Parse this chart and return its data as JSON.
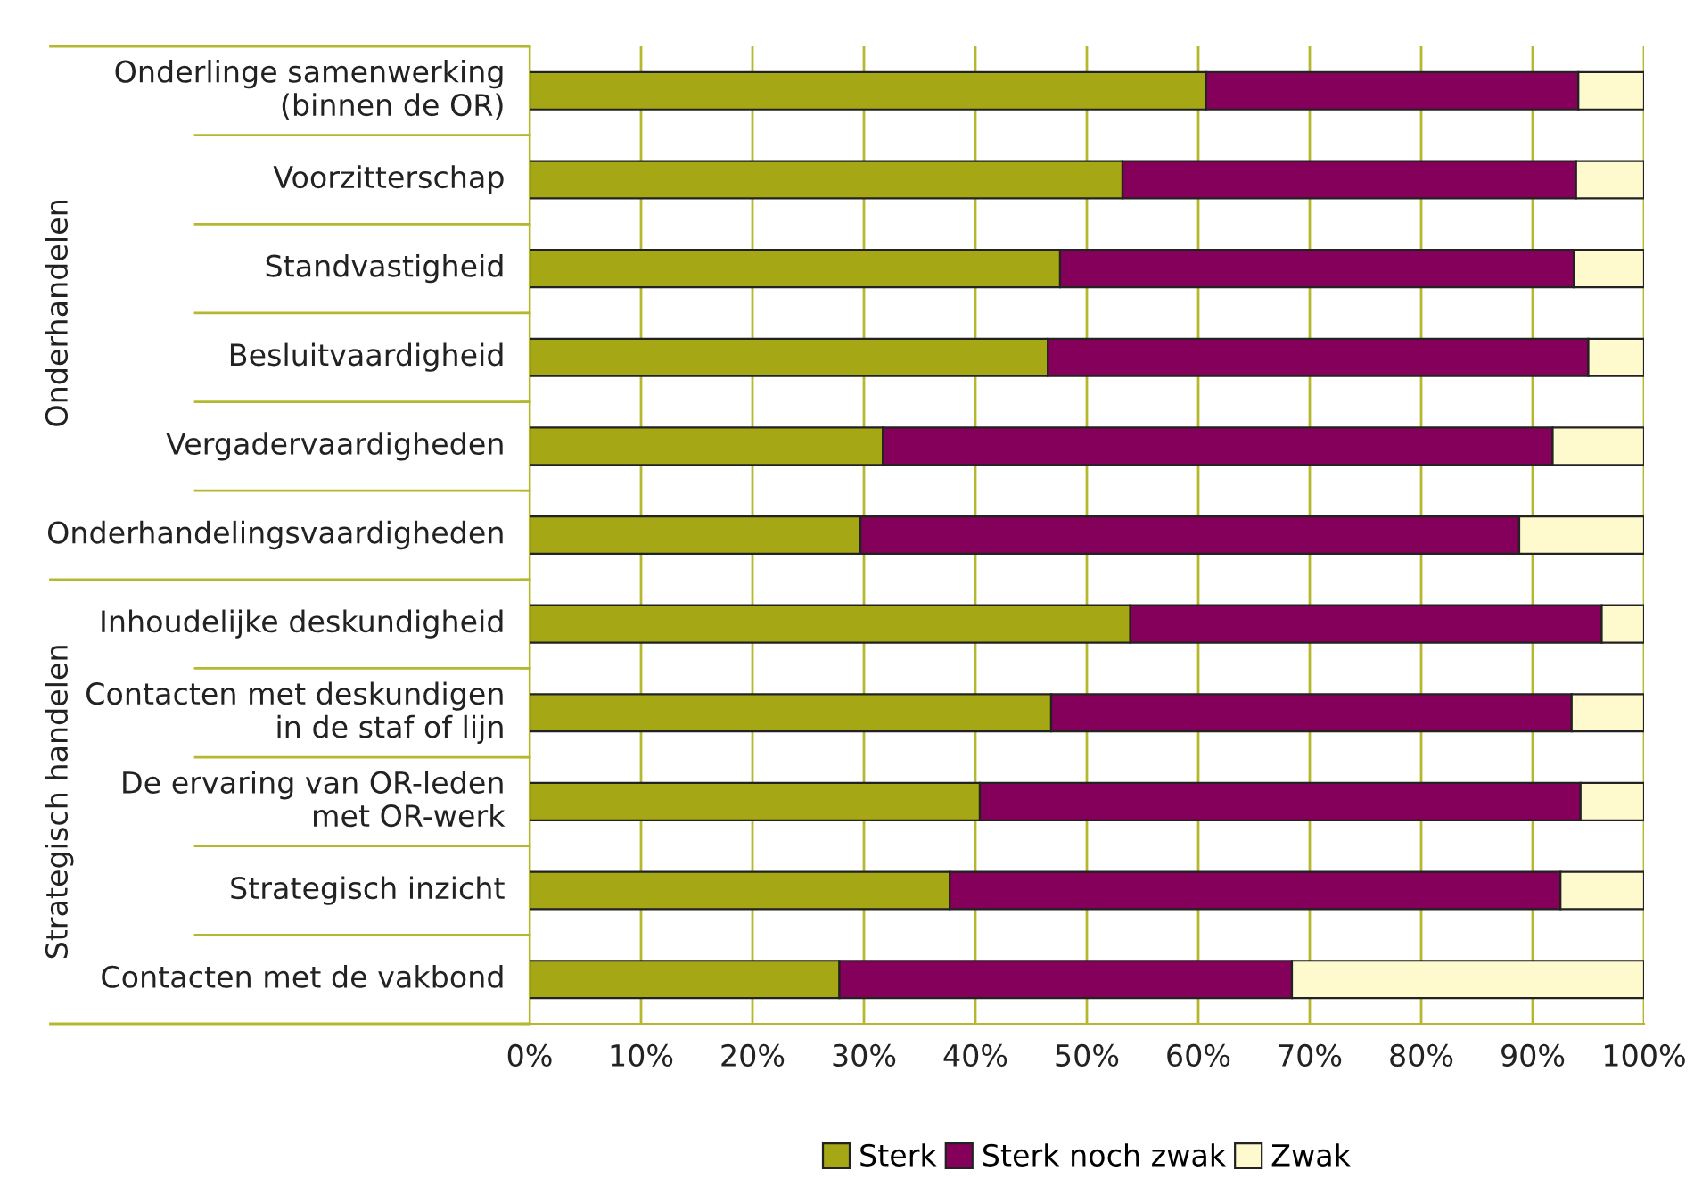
{
  "chart_data": {
    "type": "bar",
    "orientation": "horizontal",
    "stacked": true,
    "categories": [
      "Onderlinge samenwerking\n(binnen de OR)",
      "Voorzitterschap",
      "Standvastigheid",
      "Besluitvaardigheid",
      "Vergadervaardigheden",
      "Onderhandelingsvaardigheden",
      "Inhoudelijke deskundigheid",
      "Contacten met deskundigen\nin de staf of lijn",
      "De ervaring van OR-leden\nmet OR-werk",
      "Strategisch inzicht",
      "Contacten met de vakbond"
    ],
    "series": [
      {
        "name": "Sterk",
        "color": "#a5a814",
        "values": [
          60.7,
          53.2,
          47.6,
          46.5,
          31.7,
          29.7,
          53.9,
          46.8,
          40.4,
          37.7,
          27.8
        ]
      },
      {
        "name": "Sterk noch zwak",
        "color": "#85005a",
        "values": [
          33.4,
          40.7,
          46.1,
          48.5,
          60.1,
          59.1,
          42.3,
          46.7,
          53.9,
          54.8,
          40.6
        ]
      },
      {
        "name": "Zwak",
        "color": "#fffacd",
        "values": [
          5.9,
          6.1,
          6.3,
          5.0,
          8.2,
          11.2,
          3.8,
          6.5,
          5.7,
          7.5,
          31.6
        ]
      }
    ],
    "xlim": [
      0,
      100
    ],
    "xticks": [
      {
        "value": 0,
        "label": "0%"
      },
      {
        "value": 10,
        "label": "10%"
      },
      {
        "value": 20,
        "label": "20%"
      },
      {
        "value": 30,
        "label": "30%"
      },
      {
        "value": 40,
        "label": "40%"
      },
      {
        "value": 50,
        "label": "50%"
      },
      {
        "value": 60,
        "label": "60%"
      },
      {
        "value": 70,
        "label": "70%"
      },
      {
        "value": 80,
        "label": "80%"
      },
      {
        "value": 90,
        "label": "90%"
      },
      {
        "value": 100,
        "label": "100%"
      }
    ],
    "annotations": [
      "Onderhandelen",
      "Strategisch handelen"
    ],
    "grid": "x",
    "legend": "bottom"
  }
}
